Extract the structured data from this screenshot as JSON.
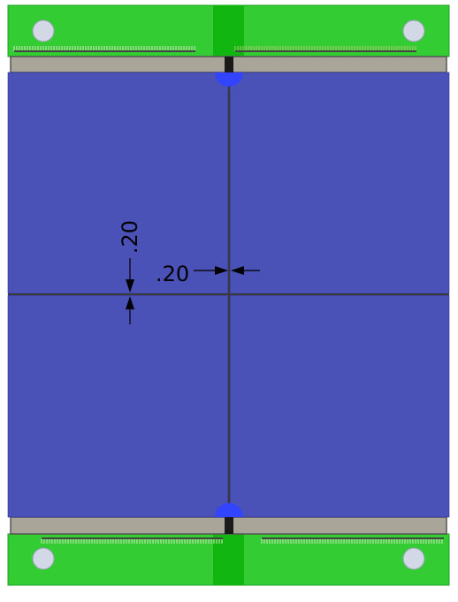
{
  "colors": {
    "board_green": "#33cc33",
    "board_stripe": "#11b611",
    "board_edge": "#22a022",
    "panel_blue": "#4a52b8",
    "panel_edge": "#2e3490",
    "gap_line": "#3a3a3a",
    "rail_gray": "#a9a699",
    "rail_edge": "#555555",
    "pad_light": "#d2d8e6",
    "via_blue": "#3344ff",
    "dimension": "#000000",
    "connector_yellow": "#b9c878"
  },
  "icons": {
    "mount_hole": "circle",
    "dimension_arrow": "arrowhead"
  },
  "dimensions": {
    "vertical_gap": {
      "label": ".20",
      "value": 0.2
    },
    "horizontal_gap": {
      "label": ".20",
      "value": 0.2
    }
  }
}
